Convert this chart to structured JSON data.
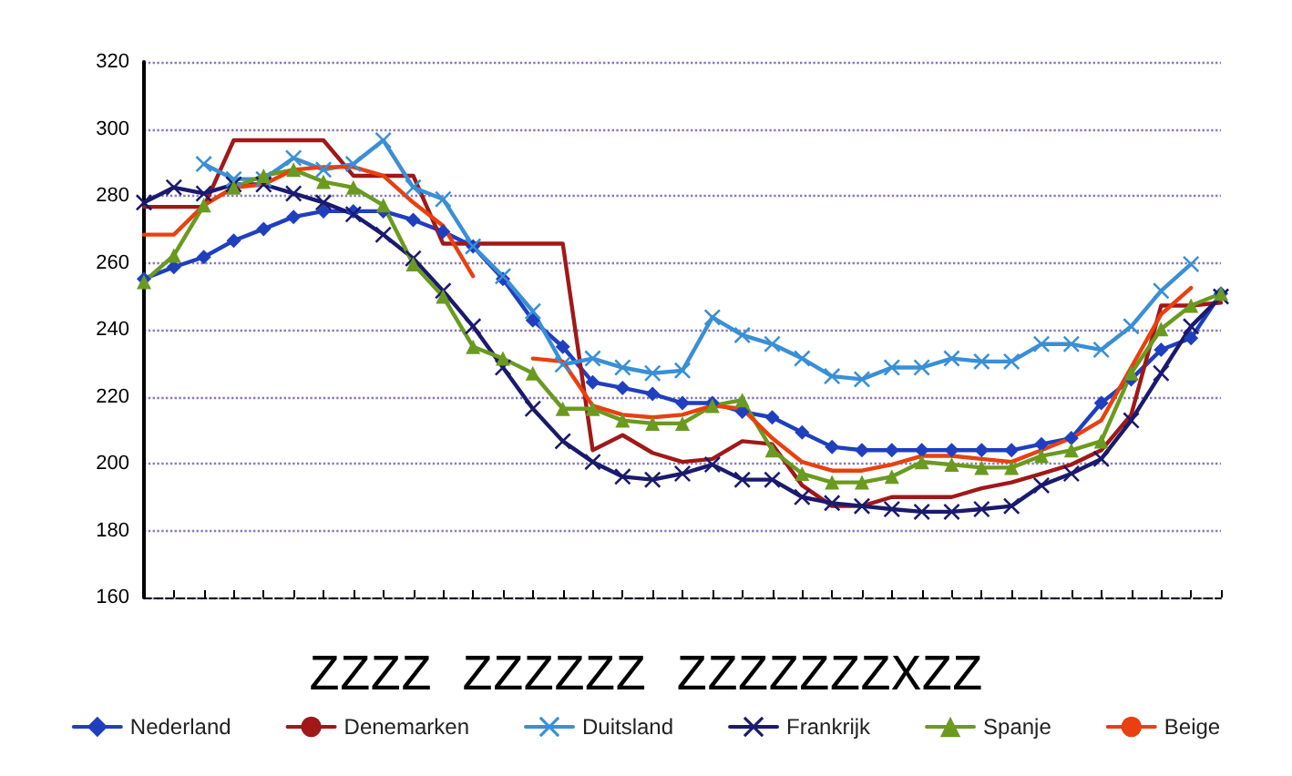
{
  "chart_data": {
    "type": "line",
    "categories": [
      null,
      null,
      null,
      null,
      null,
      null,
      null,
      null,
      null,
      null,
      null,
      null,
      null,
      null,
      null,
      null,
      null,
      null,
      null,
      null,
      null,
      null,
      null,
      null,
      null,
      null,
      null,
      null,
      null,
      null,
      null,
      null,
      null,
      null,
      null,
      null,
      null
    ],
    "series": [
      {
        "name": "Nederland",
        "color": "#1f3fbf",
        "marker": "diamond",
        "values": [
          255.2,
          258.7,
          261.7,
          266.6,
          270.1,
          273.7,
          275.4,
          275.4,
          275.4,
          272.8,
          269.3,
          264.9,
          255.2,
          242.8,
          234.9,
          224.3,
          222.6,
          220.8,
          218.1,
          218.1,
          215.5,
          213.8,
          209.3,
          205,
          204,
          204,
          204,
          204,
          204,
          204,
          205.8,
          207.6,
          218.1,
          225.2,
          234,
          237.5,
          250.8
        ]
      },
      {
        "name": "Denemarken",
        "color": "#a01818",
        "marker": "none",
        "values": [
          276.7,
          276.7,
          276.7,
          296.6,
          296.6,
          296.6,
          296.6,
          286,
          286,
          286,
          265.7,
          265.7,
          265.7,
          265.7,
          265.7,
          204,
          208.5,
          203.2,
          200.5,
          201.4,
          206.7,
          205.8,
          193.5,
          187.3,
          187.3,
          190,
          190,
          190,
          192.6,
          194.4,
          197,
          199.7,
          204,
          214.6,
          247.2,
          247.2,
          248.1
        ]
      },
      {
        "name": "Duitsland",
        "color": "#3a8fd6",
        "marker": "cross",
        "values": [
          null,
          null,
          289.5,
          285,
          285,
          291.3,
          287.8,
          289.5,
          296.6,
          282.5,
          279,
          264.9,
          256,
          245.5,
          229.6,
          231.4,
          228.7,
          227,
          227.8,
          243.7,
          238.4,
          235.7,
          231.4,
          226.1,
          225.2,
          228.7,
          228.7,
          231.4,
          230.5,
          230.5,
          235.7,
          235.7,
          234,
          241,
          251.6,
          259.6,
          null
        ]
      },
      {
        "name": "Frankrijk",
        "color": "#1a1a6e",
        "marker": "cross",
        "values": [
          278,
          282.5,
          280.7,
          283.4,
          283.4,
          280.7,
          278,
          274.5,
          268.4,
          261.3,
          251.6,
          241,
          228.7,
          216.4,
          206.7,
          200.5,
          196.1,
          195.2,
          197,
          199.7,
          195.2,
          195.2,
          190,
          188.2,
          187.3,
          186.4,
          185.6,
          185.6,
          186.4,
          187.3,
          193.5,
          197,
          201.4,
          212.9,
          227,
          241,
          249.9
        ]
      },
      {
        "name": "Spanje",
        "color": "#6a9a20",
        "marker": "triangle",
        "values": [
          254.3,
          262.2,
          277.2,
          282.5,
          286,
          287.8,
          284.2,
          282.5,
          277.2,
          259.6,
          249.9,
          234.9,
          231.4,
          227,
          216.4,
          216.4,
          212.9,
          212,
          212,
          217.3,
          219,
          204,
          197,
          194.4,
          194.4,
          196.1,
          200.5,
          199.7,
          198.8,
          198.8,
          202.3,
          204,
          206.7,
          227,
          240.2,
          247.2,
          250.8
        ]
      },
      {
        "name": "Beige",
        "color": "#e84010",
        "marker": "none",
        "values": [
          268.4,
          268.4,
          277.2,
          282.5,
          283.4,
          287.8,
          288.6,
          288.6,
          286,
          278,
          271,
          256,
          null,
          231.4,
          230.5,
          217.3,
          214.6,
          213.8,
          214.6,
          217.3,
          216.4,
          207.6,
          200.5,
          197.9,
          197.9,
          199.7,
          202.3,
          202.3,
          201.4,
          200.5,
          204,
          207.6,
          212.9,
          228.7,
          244.6,
          252.5,
          null
        ]
      }
    ],
    "ylim": [
      160,
      320
    ],
    "yticks": [
      160,
      180,
      200,
      220,
      240,
      260,
      280,
      300,
      320
    ],
    "grid": "y",
    "legend": "bottom",
    "tick_labels": "y",
    "line_style": "solid",
    "annotations": [
      "ZZZZ ZZZZZZ ZZZZZZZXZZ"
    ]
  }
}
